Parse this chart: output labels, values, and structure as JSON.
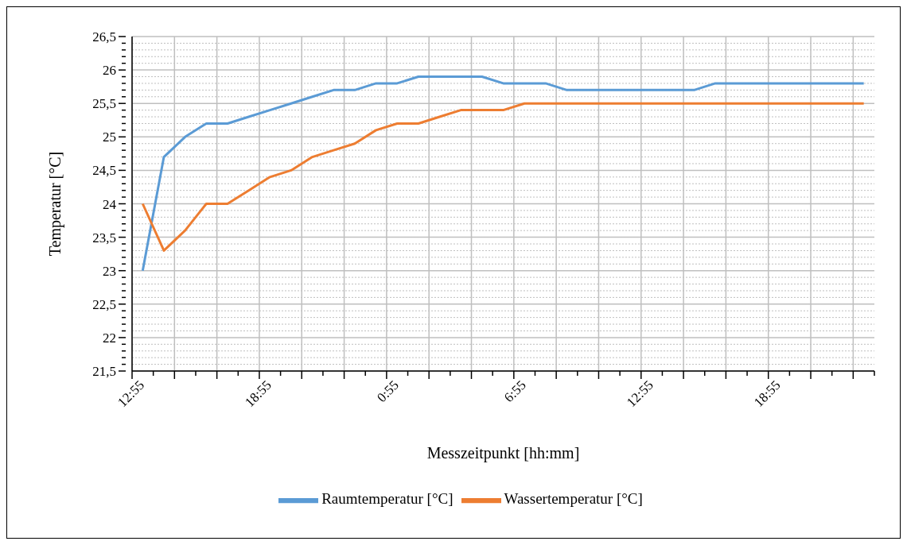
{
  "chart_data": {
    "type": "line",
    "xlabel": "Messzeitpunkt [hh:mm]",
    "ylabel": "Temperatur [°C]",
    "categories": [
      "12:55",
      null,
      null,
      null,
      null,
      null,
      "18:55",
      null,
      null,
      null,
      null,
      null,
      "0:55",
      null,
      null,
      null,
      null,
      null,
      "6:55",
      null,
      null,
      null,
      null,
      null,
      "12:55",
      null,
      null,
      null,
      null,
      null,
      "18:55",
      null,
      null,
      null,
      null
    ],
    "series": [
      {
        "name": "Raumtemperatur [°C]",
        "color": "#5b9bd5",
        "values": [
          23,
          24.7,
          25,
          25.2,
          25.2,
          25.3,
          25.4,
          25.5,
          25.6,
          25.7,
          25.7,
          25.8,
          25.8,
          25.9,
          25.9,
          25.9,
          25.9,
          25.8,
          25.8,
          25.8,
          25.7,
          25.7,
          25.7,
          25.7,
          25.7,
          25.7,
          25.7,
          25.8,
          25.8,
          25.8,
          25.8,
          25.8,
          25.8,
          25.8,
          25.8
        ]
      },
      {
        "name": "Wassertemperatur [°C]",
        "color": "#ed7d31",
        "values": [
          24,
          23.3,
          23.6,
          24,
          24,
          24.2,
          24.4,
          24.5,
          24.7,
          24.8,
          24.9,
          25.1,
          25.2,
          25.2,
          25.3,
          25.4,
          25.4,
          25.4,
          25.5,
          25.5,
          25.5,
          25.5,
          25.5,
          25.5,
          25.5,
          25.5,
          25.5,
          25.5,
          25.5,
          25.5,
          25.5,
          25.5,
          25.5,
          25.5,
          25.5
        ]
      }
    ],
    "ylim": [
      21.5,
      26.5
    ],
    "yticks": [
      {
        "value": 21.5,
        "label": "21,5"
      },
      22,
      {
        "value": 22.5,
        "label": "22,5"
      },
      23,
      {
        "value": 23.5,
        "label": "23,5"
      },
      24,
      {
        "value": 24.5,
        "label": "24,5"
      },
      25,
      {
        "value": 25.5,
        "label": "25,5"
      },
      26,
      {
        "value": 26.5,
        "label": "26,5"
      }
    ],
    "grid": true,
    "legend": "bottom",
    "marker": "none",
    "line_style": "solid"
  }
}
